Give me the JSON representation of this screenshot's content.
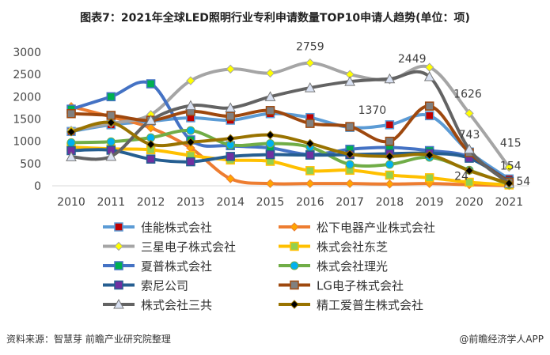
{
  "title": "图表7：2021年全球LED照明行业专利申请数量TOP10申请人趋势(单位：项)",
  "source": "资料来源：智慧芽 前瞻产业研究院整理",
  "watermark": "@前瞻经济学人APP",
  "chart_data": {
    "type": "line",
    "title": "图表7：2021年全球LED照明行业专利申请数量TOP10申请人趋势(单位：项)",
    "x": [
      "2010",
      "2011",
      "2012",
      "2013",
      "2014",
      "2015",
      "2016",
      "2017",
      "2018",
      "2019",
      "2020",
      "2021"
    ],
    "ylim": [
      0,
      3000
    ],
    "yticks": [
      0,
      500,
      1000,
      1500,
      2000,
      2500,
      3000
    ],
    "grid": false,
    "legend": "bottom",
    "series": [
      {
        "name": "佳能株式会社",
        "color": "#5B9BD5",
        "marker": "square",
        "marker_color": "#C00000",
        "values": [
          1220,
          1370,
          1450,
          1527,
          1473,
          1620,
          1532,
          1310,
          1370,
          1574,
          760,
          154
        ]
      },
      {
        "name": "松下电器产业株式会社",
        "color": "#ED7D31",
        "marker": "diamond",
        "marker_color": "#FFA500",
        "values": [
          1780,
          1550,
          1300,
          850,
          160,
          50,
          50,
          50,
          40,
          50,
          24,
          5
        ]
      },
      {
        "name": "三星电子株式会社",
        "color": "#A5A5A5",
        "marker": "diamond",
        "marker_color": "#FFFF00",
        "values": [
          1250,
          1400,
          1600,
          2360,
          2620,
          2530,
          2759,
          2500,
          2380,
          2660,
          1626,
          415
        ]
      },
      {
        "name": "株式会社东芝",
        "color": "#FFC000",
        "marker": "square",
        "marker_color": "#92D050",
        "values": [
          870,
          830,
          810,
          680,
          580,
          550,
          340,
          350,
          240,
          180,
          80,
          20
        ]
      },
      {
        "name": "夏普株式会社",
        "color": "#4472C4",
        "marker": "square",
        "marker_color": "#00B050",
        "values": [
          1720,
          2000,
          2290,
          1030,
          900,
          850,
          700,
          820,
          860,
          790,
          650,
          100
        ]
      },
      {
        "name": "株式会社理光",
        "color": "#70AD47",
        "marker": "circle",
        "marker_color": "#00B0F0",
        "values": [
          970,
          990,
          1080,
          1240,
          920,
          950,
          870,
          480,
          480,
          640,
          350,
          30
        ]
      },
      {
        "name": "索尼公司",
        "color": "#255E91",
        "marker": "square",
        "marker_color": "#7030A0",
        "values": [
          790,
          800,
          600,
          540,
          660,
          700,
          690,
          700,
          720,
          730,
          620,
          100
        ]
      },
      {
        "name": "LG电子株式会社",
        "color": "#9E480E",
        "marker": "square",
        "marker_color": "#808080",
        "values": [
          1620,
          1580,
          1470,
          1670,
          1560,
          1690,
          1400,
          1330,
          1000,
          1790,
          743,
          80
        ]
      },
      {
        "name": "株式会社三共",
        "color": "#636363",
        "marker": "triangle",
        "marker_color": "#D9E1F2",
        "values": [
          650,
          660,
          1470,
          1800,
          1750,
          2000,
          2200,
          2340,
          2400,
          2449,
          820,
          54
        ]
      },
      {
        "name": "精工爱普生株式会社",
        "color": "#997300",
        "marker": "diamond",
        "marker_color": "#000000",
        "values": [
          1210,
          1420,
          930,
          980,
          1060,
          1140,
          950,
          710,
          660,
          690,
          340,
          54
        ]
      }
    ],
    "data_labels": [
      {
        "series": "三星电子株式会社",
        "x": "2016",
        "text": "2759"
      },
      {
        "series": "佳能株式会社",
        "x": "2018",
        "text": "1370"
      },
      {
        "series": "株式会社三共",
        "x": "2019",
        "text": "2449"
      },
      {
        "series": "三星电子株式会社",
        "x": "2020",
        "text": "1626"
      },
      {
        "series": "LG电子株式会社",
        "x": "2020",
        "text": "743"
      },
      {
        "series": "松下电器产业株式会社",
        "x": "2020",
        "text": "24"
      },
      {
        "series": "三星电子株式会社",
        "x": "2021",
        "text": "415"
      },
      {
        "series": "佳能株式会社",
        "x": "2021",
        "text": "154"
      },
      {
        "series": "株式会社三共",
        "x": "2021",
        "text": "54"
      }
    ]
  }
}
